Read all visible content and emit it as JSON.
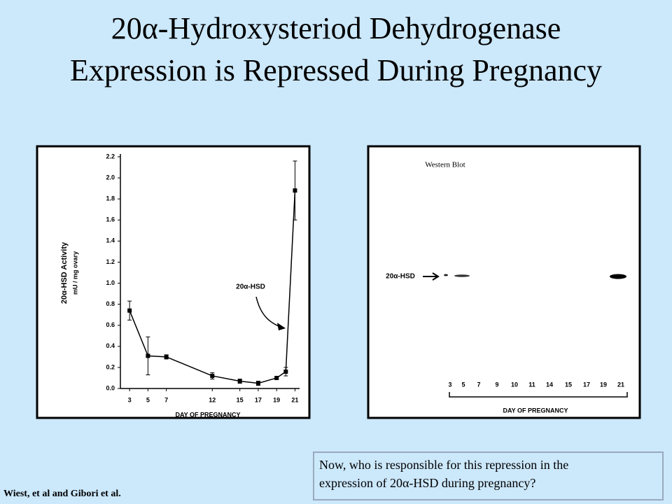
{
  "slide": {
    "title_line1": "20α-Hydroxysteriod Dehydrogenase",
    "title_line2": "Expression is Repressed During Pregnancy",
    "citation": "Wiest, et al and Gibori et al.",
    "question_line1": "Now, who is responsible for this repression in the",
    "question_line2": "expression of 20α-HSD during pregnancy?"
  },
  "chart_data": {
    "type": "line",
    "ylabel": "20α-HSD Activity",
    "ylabel2": "mU / mg ovary",
    "xlabel": "DAY OF PREGNANCY",
    "annotation": "20α-HSD",
    "x": [
      3,
      5,
      7,
      12,
      15,
      17,
      19,
      20,
      21
    ],
    "series": [
      {
        "color": "#000000",
        "values": [
          0.74,
          0.31,
          0.3,
          0.12,
          0.07,
          0.05,
          0.1,
          0.16,
          1.88
        ],
        "errors": [
          0.09,
          0.18,
          0.02,
          0.03,
          0.02,
          0.02,
          0.01,
          0.04,
          0.28
        ]
      }
    ],
    "xlim": [
      2,
      21.5
    ],
    "xticks": [
      3,
      5,
      7,
      12,
      15,
      17,
      19,
      21
    ],
    "ylim": [
      0,
      2.2
    ],
    "yticks": [
      {
        "value": 0,
        "label": "0.0"
      },
      0.2,
      0.4,
      0.6,
      0.8,
      {
        "value": 1,
        "label": "1.0"
      },
      1.2,
      1.4,
      1.6,
      1.8,
      {
        "value": 2,
        "label": "2.0"
      },
      2.2
    ]
  },
  "blot": {
    "title": "Western Blot",
    "band_label": "20α-HSD",
    "lanes": [
      "3",
      "5",
      "7",
      "9",
      "10",
      "11",
      "14",
      "15",
      "17",
      "19",
      "21"
    ],
    "xlabel": "DAY OF PREGNANCY"
  }
}
